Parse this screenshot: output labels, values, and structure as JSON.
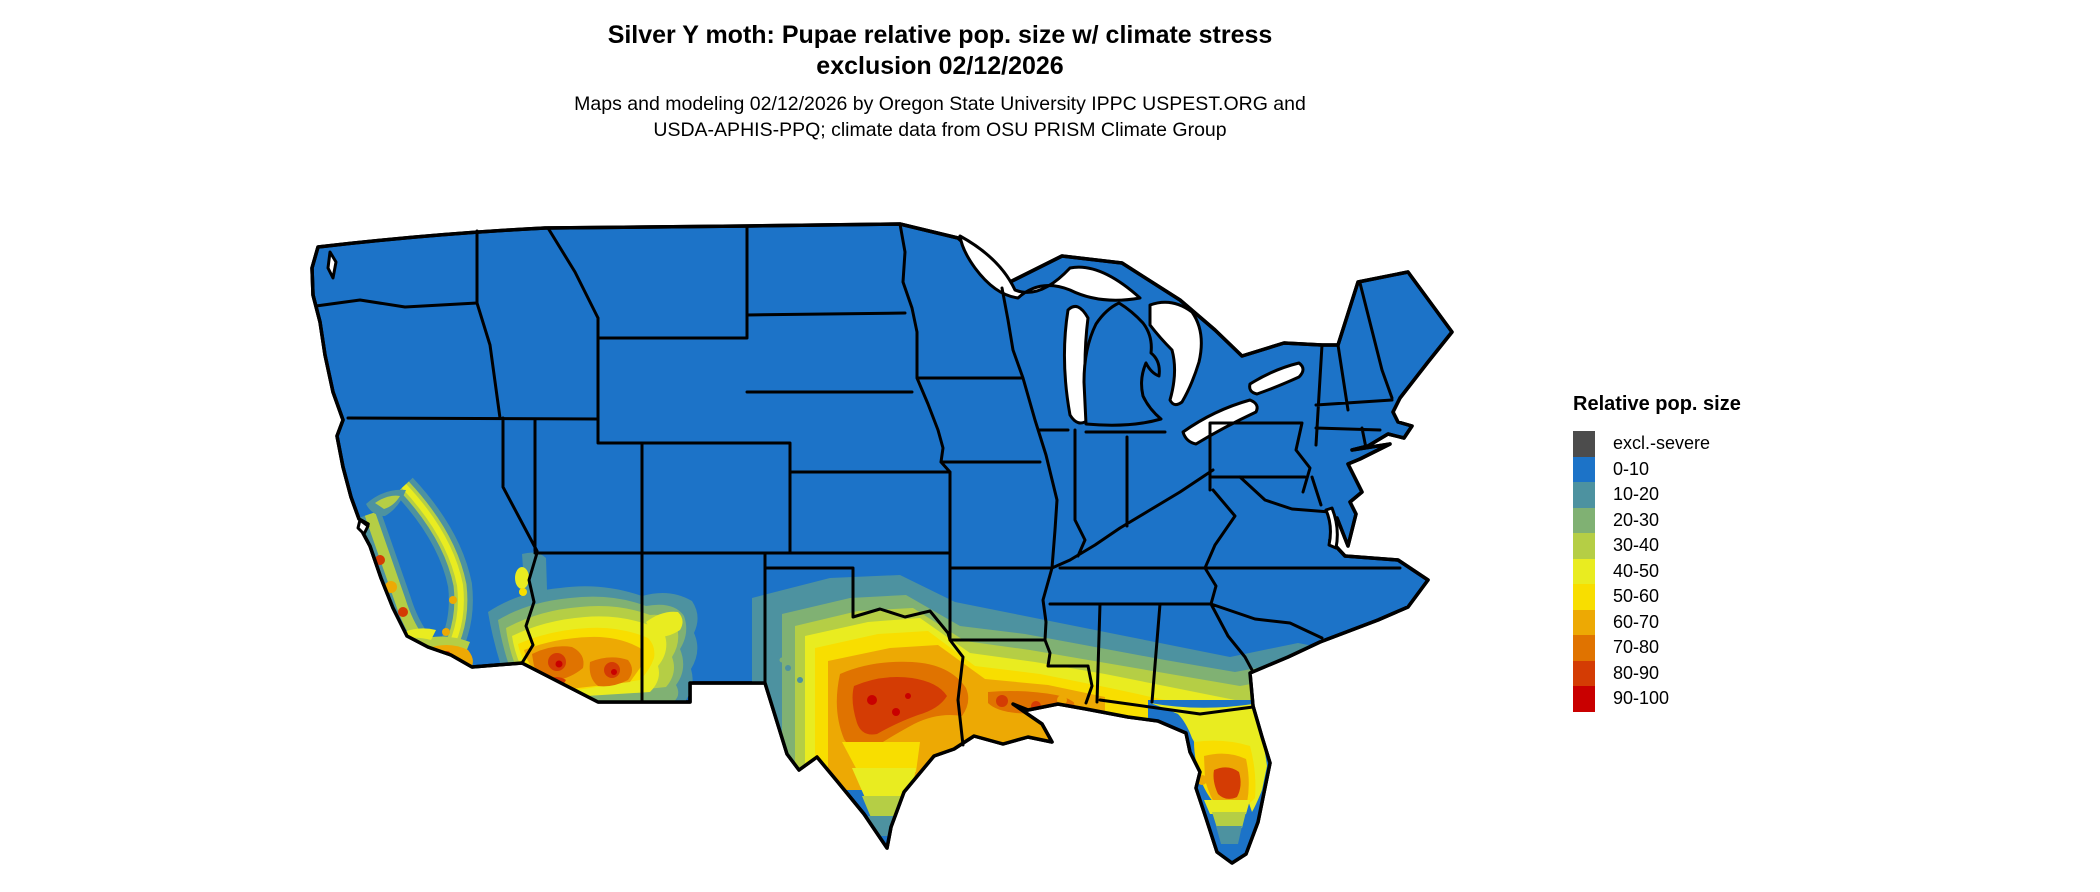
{
  "title": {
    "line1": "Silver Y moth: Pupae relative pop. size w/ climate stress",
    "line2": "exclusion 02/12/2026"
  },
  "subtitle": {
    "line1": "Maps and modeling 02/12/2026 by Oregon State University IPPC USPEST.ORG and",
    "line2": "USDA-APHIS-PPQ; climate data from OSU PRISM Climate Group"
  },
  "legend": {
    "title": "Relative pop. size",
    "items": [
      {
        "label": "excl.-severe",
        "color": "#4c4c4c"
      },
      {
        "label": "0-10",
        "color": "#1c73c8"
      },
      {
        "label": "10-20",
        "color": "#4d92a0"
      },
      {
        "label": "20-30",
        "color": "#80b173"
      },
      {
        "label": "30-40",
        "color": "#b5ce45"
      },
      {
        "label": "40-50",
        "color": "#e9ec20"
      },
      {
        "label": "50-60",
        "color": "#f8de00"
      },
      {
        "label": "60-70",
        "color": "#eda904"
      },
      {
        "label": "70-80",
        "color": "#e07300"
      },
      {
        "label": "80-90",
        "color": "#d43c04"
      },
      {
        "label": "90-100",
        "color": "#c90000"
      }
    ]
  },
  "map": {
    "depicts": "Contiguous United States raster map of relative population size",
    "land_base_color": "#1c73c8",
    "state_border_color": "#000000",
    "water_background_color": "#ffffff",
    "high_value_regions": [
      "California Central Valley margins and central/south coast",
      "Southern California and southern Arizona",
      "Central and coastal Texas",
      "Louisiana Gulf Coast",
      "Central Florida peninsula",
      "Southeastern coastal plain (MS/AL/GA teal-green band)"
    ]
  }
}
